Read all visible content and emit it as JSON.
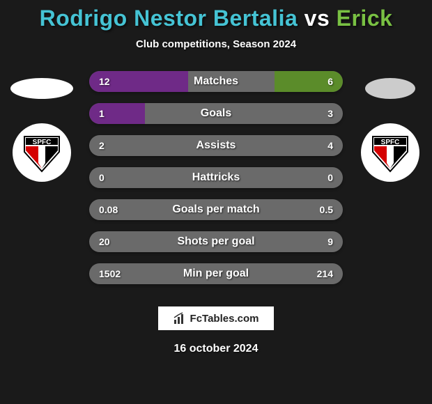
{
  "title": {
    "player1": "Rodrigo Nestor Bertalia",
    "vs": " vs ",
    "player2": "Erick",
    "player1_color": "#45c3d4",
    "player2_color": "#79c143"
  },
  "subtitle": "Club competitions, Season 2024",
  "background_color": "#1a1a1a",
  "bar_track_color": "#6a6a6a",
  "left_bar_color": "#6f2a87",
  "right_bar_color": "#5b8c2a",
  "left_ellipse": {
    "width": 90,
    "background": "#ffffff"
  },
  "right_ellipse": {
    "width": 72,
    "background": "#cccccc"
  },
  "club_badge": "SPFC",
  "stats": [
    {
      "label": "Matches",
      "left_val": "12",
      "right_val": "6",
      "left_pct": 39,
      "right_pct": 27
    },
    {
      "label": "Goals",
      "left_val": "1",
      "right_val": "3",
      "left_pct": 22,
      "right_pct": 0
    },
    {
      "label": "Assists",
      "left_val": "2",
      "right_val": "4",
      "left_pct": 0,
      "right_pct": 0
    },
    {
      "label": "Hattricks",
      "left_val": "0",
      "right_val": "0",
      "left_pct": 0,
      "right_pct": 0
    },
    {
      "label": "Goals per match",
      "left_val": "0.08",
      "right_val": "0.5",
      "left_pct": 0,
      "right_pct": 0
    },
    {
      "label": "Shots per goal",
      "left_val": "20",
      "right_val": "9",
      "left_pct": 0,
      "right_pct": 0
    },
    {
      "label": "Min per goal",
      "left_val": "1502",
      "right_val": "214",
      "left_pct": 0,
      "right_pct": 0
    }
  ],
  "brand": "FcTables.com",
  "date": "16 october 2024"
}
